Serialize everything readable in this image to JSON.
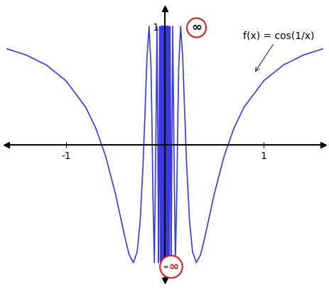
{
  "chart_data": {
    "type": "line",
    "x": [
      -1.6,
      -1.4,
      -1.2,
      -1.0,
      -0.8,
      -0.7,
      -0.6,
      -0.5,
      -0.4,
      -0.36,
      -0.3183,
      -0.28,
      -0.25,
      -0.22,
      -0.2,
      -0.18,
      -0.1592,
      -0.14,
      -0.13,
      -0.12,
      -0.1061,
      -0.09,
      -0.0796,
      -0.07,
      -0.0637,
      -0.0531,
      -0.0455,
      -0.0398,
      -0.0354,
      -0.0318,
      -0.0289,
      -0.0265,
      -0.0245,
      -0.0227,
      -0.0212,
      -0.0199,
      -0.0187,
      -0.0177,
      -0.0168,
      -0.0159,
      -0.01516,
      -0.01447,
      -0.01384,
      -0.01326,
      -0.01273,
      -0.01224,
      -0.01179,
      -0.01137,
      -0.01098,
      -0.01061,
      0.01061,
      0.01098,
      0.01137,
      0.01179,
      0.01224,
      0.01273,
      0.01326,
      0.01384,
      0.01447,
      0.01516,
      0.0159,
      0.0168,
      0.0177,
      0.0187,
      0.0199,
      0.0212,
      0.0227,
      0.0245,
      0.0265,
      0.0289,
      0.0318,
      0.0354,
      0.0398,
      0.0455,
      0.0531,
      0.0637,
      0.07,
      0.0796,
      0.09,
      0.1061,
      0.12,
      0.13,
      0.14,
      0.1592,
      0.18,
      0.2,
      0.22,
      0.25,
      0.28,
      0.3183,
      0.36,
      0.4,
      0.5,
      0.6,
      0.7,
      0.8,
      1.0,
      1.2,
      1.4,
      1.6
    ],
    "values": [
      0.811,
      0.757,
      0.674,
      0.54,
      0.315,
      0.142,
      -0.096,
      -0.416,
      -0.801,
      -0.935,
      -1,
      -0.909,
      -0.654,
      -0.166,
      0.284,
      0.747,
      1,
      0.652,
      0.161,
      -0.461,
      -1,
      0.115,
      1,
      -0.149,
      -1,
      1,
      -1,
      1,
      -1,
      1,
      -1,
      1,
      -1,
      1,
      -1,
      1,
      -1,
      1,
      -1,
      1,
      -1,
      1,
      -1,
      1,
      -1,
      1,
      -1,
      1,
      -1,
      1,
      1,
      -1,
      1,
      -1,
      1,
      -1,
      1,
      -1,
      1,
      -1,
      1,
      -1,
      1,
      -1,
      1,
      -1,
      1,
      -1,
      1,
      -1,
      1,
      -1,
      1,
      -1,
      1,
      -1,
      -0.149,
      1,
      0.115,
      -1,
      -0.461,
      0.161,
      0.652,
      1,
      0.747,
      0.284,
      -0.166,
      -0.654,
      -0.909,
      -1,
      -0.935,
      -0.801,
      -0.416,
      -0.096,
      0.142,
      0.315,
      0.54,
      0.674,
      0.757,
      0.811
    ],
    "color": "#3a3ae0",
    "xlim": [
      -1.6,
      1.6
    ],
    "ylim": [
      -1.15,
      1.15
    ],
    "xticks": [
      -1,
      1
    ],
    "yticks": [
      1
    ],
    "annotations": [
      {
        "text": "∞"
      },
      {
        "text": "-∞"
      },
      {
        "text": "f(x) = cos(1/x)"
      }
    ]
  }
}
